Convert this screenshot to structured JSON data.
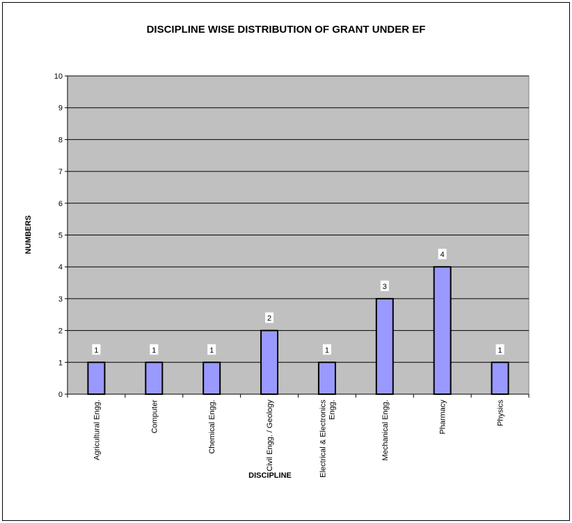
{
  "chart_data": {
    "type": "bar",
    "title": "DISCIPLINE WISE DISTRIBUTION OF GRANT UNDER EF",
    "xlabel": "DISCIPLINE",
    "ylabel": "NUMBERS",
    "categories": [
      "Agricultural Engg.",
      "Computer",
      "Chemical Engg.",
      "Civil Engg. / Geology",
      "Electrical & Electronics Engg.",
      "Mechanical Engg.",
      "Pharmacy",
      "Physics"
    ],
    "category_lines": [
      [
        "Agricultural Engg."
      ],
      [
        "Computer"
      ],
      [
        "Chemical Engg."
      ],
      [
        "Civil Engg. / Geology"
      ],
      [
        "Electrical & Electronics",
        "Engg."
      ],
      [
        "Mechanical Engg."
      ],
      [
        "Pharmacy"
      ],
      [
        "Physics"
      ]
    ],
    "values": [
      1,
      1,
      1,
      2,
      1,
      3,
      4,
      1
    ],
    "data_labels": [
      "1",
      "1",
      "1",
      "2",
      "1",
      "3",
      "4",
      "1"
    ],
    "ylim": [
      0,
      10
    ],
    "yticks": [
      0,
      1,
      2,
      3,
      4,
      5,
      6,
      7,
      8,
      9,
      10
    ],
    "grid": true,
    "legend": "none",
    "colors": {
      "plot_bg": "#c0c0c0",
      "bar_fill": "#9999ff",
      "bar_stroke": "#000000",
      "gridline": "#000000"
    }
  }
}
